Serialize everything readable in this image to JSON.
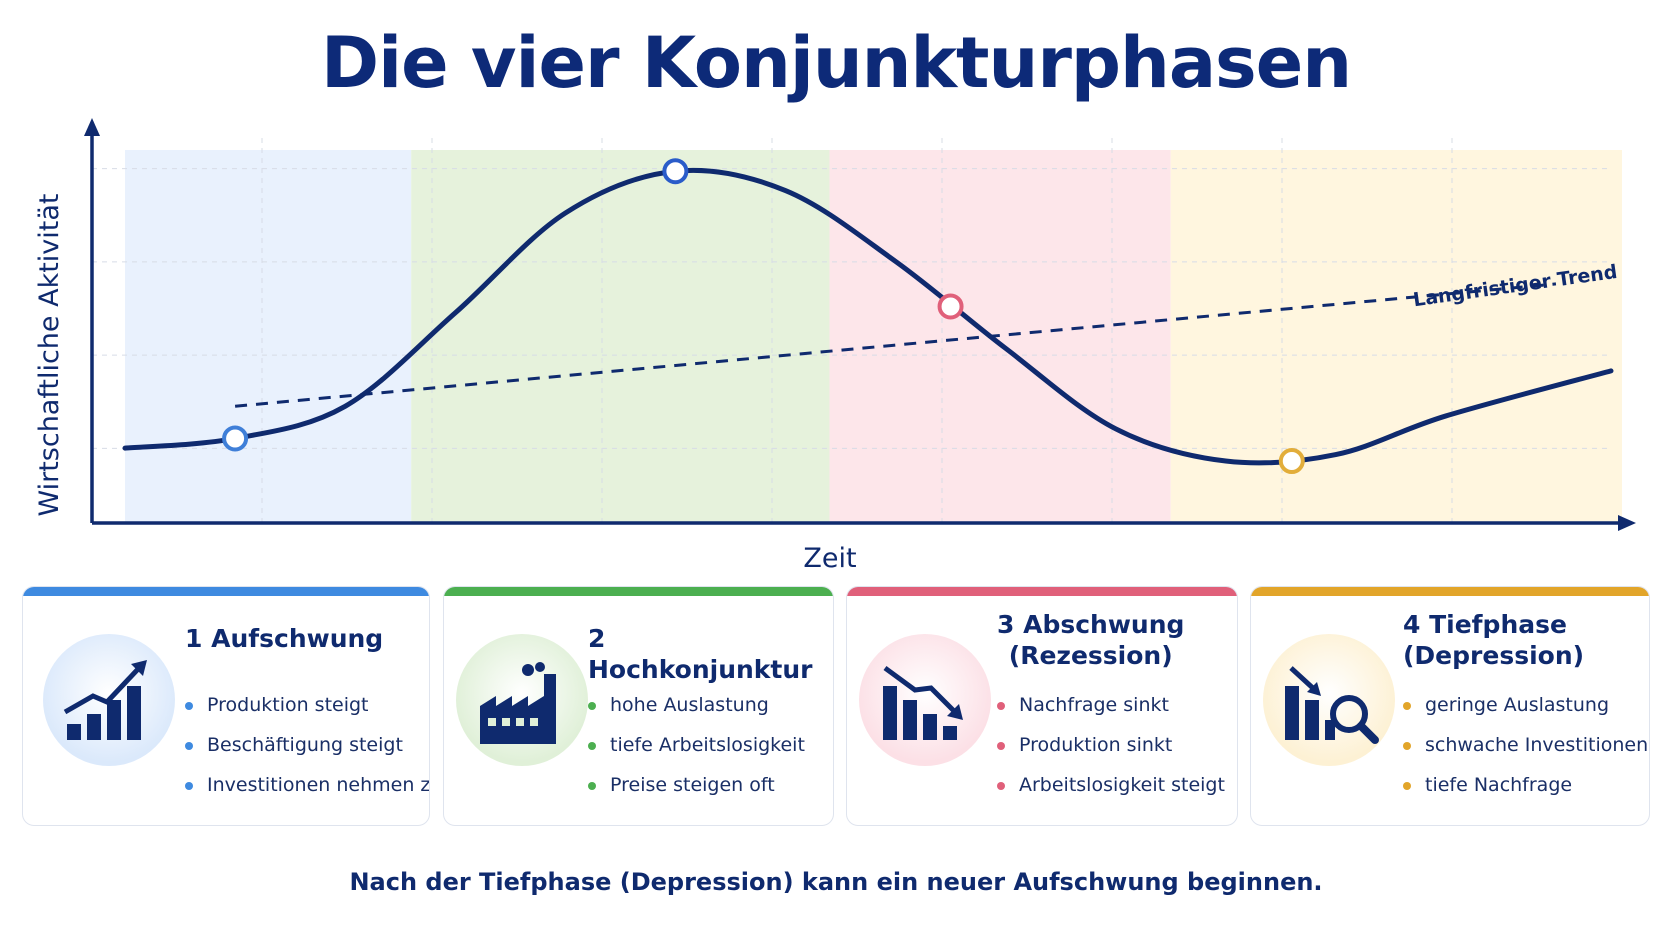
{
  "title": "Die vier Konjunkturphasen",
  "chart_data": {
    "type": "line",
    "ylabel": "Wirtschaftliche Aktivität",
    "xlabel": "Zeit",
    "trend_label": "Langfristiger Trend",
    "curve": [
      [
        0.0,
        0.13
      ],
      [
        1.0,
        0.16
      ],
      [
        2.0,
        0.26
      ],
      [
        3.0,
        0.55
      ],
      [
        4.0,
        0.86
      ],
      [
        5.0,
        0.99
      ],
      [
        6.0,
        0.93
      ],
      [
        7.0,
        0.71
      ],
      [
        8.0,
        0.44
      ],
      [
        9.0,
        0.19
      ],
      [
        10.0,
        0.09
      ],
      [
        11.0,
        0.11
      ],
      [
        12.0,
        0.23
      ],
      [
        13.5,
        0.37
      ]
    ],
    "trend": [
      [
        1.0,
        0.26
      ],
      [
        13.0,
        0.64
      ]
    ],
    "phase_bands": [
      {
        "from": 0.0,
        "to": 2.6,
        "color": "#e9f1fd"
      },
      {
        "from": 2.6,
        "to": 6.4,
        "color": "#e6f2dc"
      },
      {
        "from": 6.4,
        "to": 9.5,
        "color": "#fde6ea"
      },
      {
        "from": 9.5,
        "to": 13.6,
        "color": "#fff6df"
      }
    ],
    "markers": [
      {
        "x": 1.0,
        "y": 0.16,
        "color": "#3f7fd8"
      },
      {
        "x": 5.0,
        "y": 0.99,
        "color": "#2a5cc9"
      },
      {
        "x": 7.5,
        "y": 0.57,
        "color": "#e0607a"
      },
      {
        "x": 10.6,
        "y": 0.09,
        "color": "#e2ad3a"
      }
    ],
    "xlim": [
      -0.3,
      13.6
    ],
    "ylim": [
      0,
      1
    ],
    "grid": true
  },
  "phases": [
    {
      "title": "1 Aufschwung",
      "color": "#3e8ae0",
      "circle_color": "#dbe9fb",
      "icon": "growth-chart-icon",
      "items": [
        "Produktion steigt",
        "Beschäftigung steigt",
        "Investitionen nehmen zu"
      ]
    },
    {
      "title": "2 Hochkonjunktur",
      "color": "#4caf50",
      "circle_color": "#e0f0d8",
      "icon": "factory-icon",
      "items": [
        "hohe Auslastung",
        "tiefe Arbeitslosigkeit",
        "Preise steigen oft"
      ]
    },
    {
      "title": "3 Abschwung\n(Rezession)",
      "color": "#e0607a",
      "circle_color": "#fce0e6",
      "icon": "decline-chart-icon",
      "items": [
        "Nachfrage sinkt",
        "Produktion sinkt",
        "Arbeitslosigkeit steigt"
      ]
    },
    {
      "title": "4 Tiefphase\n(Depression)",
      "color": "#e2a52a",
      "circle_color": "#fdf1d4",
      "icon": "magnifier-chart-icon",
      "items": [
        "geringe Auslastung",
        "schwache Investitionen",
        "tiefe Nachfrage"
      ]
    }
  ],
  "footer": "Nach der Tiefphase (Depression) kann ein neuer Aufschwung beginnen."
}
